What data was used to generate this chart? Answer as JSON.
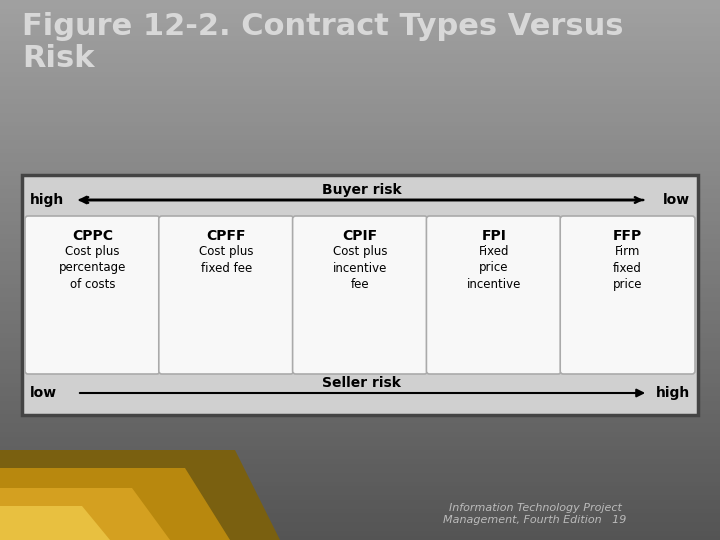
{
  "title_line1": "Figure 12-2. Contract Types Versus",
  "title_line2": "Risk",
  "title_color": "#d8d8d8",
  "title_fontsize": 22,
  "footer_text": "Information Technology Project\nManagement, Fourth Edition   19",
  "footer_color": "#bbbbbb",
  "footer_fontsize": 8,
  "contracts": [
    {
      "abbr": "CPPC",
      "desc": "Cost plus\npercentage\nof costs"
    },
    {
      "abbr": "CPFF",
      "desc": "Cost plus\nfixed fee"
    },
    {
      "abbr": "CPIF",
      "desc": "Cost plus\nincentive\nfee"
    },
    {
      "abbr": "FPI",
      "desc": "Fixed\nprice\nincentive"
    },
    {
      "abbr": "FFP",
      "desc": "Firm\nfixed\nprice"
    }
  ],
  "buyer_risk_label": "Buyer risk",
  "buyer_high": "high",
  "buyer_low": "low",
  "seller_risk_label": "Seller risk",
  "seller_low": "low",
  "seller_high": "high"
}
